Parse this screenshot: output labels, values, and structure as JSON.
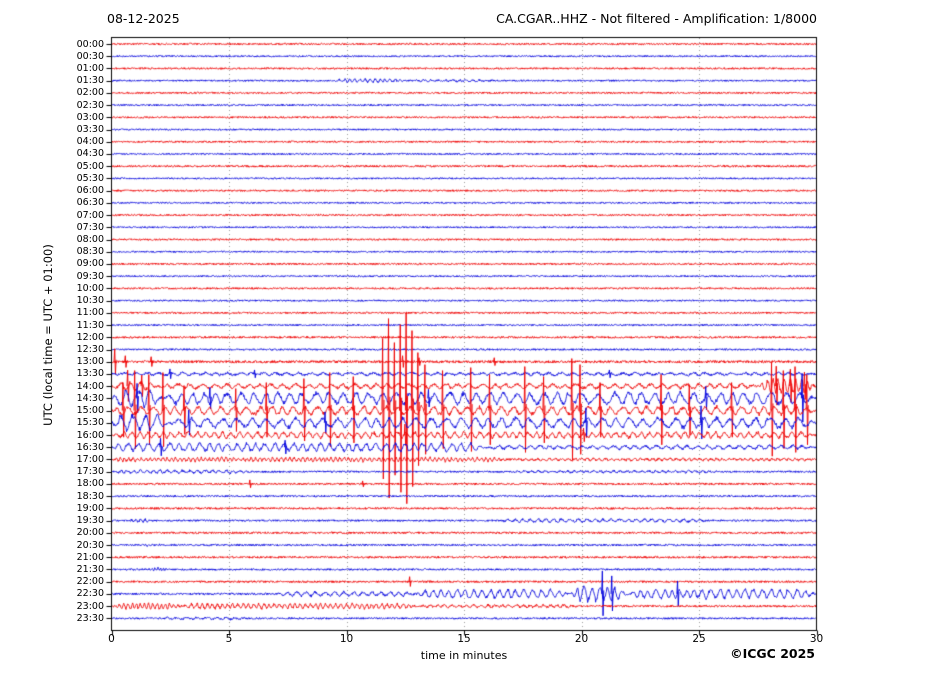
{
  "chart_data": {
    "type": "line",
    "subtype": "helicorder-dayplot-seismogram",
    "title_left": "08-12-2025",
    "title_right": "CA.CGAR..HHZ - Not filtered - Amplification: 1/8000",
    "xlabel": "time in minutes",
    "ylabel": "UTC (local time = UTC + 01:00)",
    "copyright": "©ICGC 2025",
    "x_range": [
      0,
      30
    ],
    "x_ticks": [
      0,
      5,
      10,
      15,
      20,
      25,
      30
    ],
    "grid_minutes": [
      5,
      10,
      15,
      20,
      25
    ],
    "minutes_per_line": 30,
    "grid_style": "dotted-vertical",
    "colors": {
      "red": "#ee0000",
      "blue": "#0000dd",
      "grid": "#999999",
      "frame": "#000000"
    },
    "rows": [
      {
        "label": "00:00",
        "color": "red",
        "noise": 0.9
      },
      {
        "label": "00:30",
        "color": "blue",
        "noise": 0.8
      },
      {
        "label": "01:00",
        "color": "red",
        "noise": 0.9
      },
      {
        "label": "01:30",
        "color": "blue",
        "noise": 0.8,
        "bursts": [
          [
            9.4,
            12.6,
            1.8,
            0.22
          ],
          [
            12.6,
            16.5,
            0.9,
            0.3
          ]
        ]
      },
      {
        "label": "02:00",
        "color": "red",
        "noise": 0.9
      },
      {
        "label": "02:30",
        "color": "blue",
        "noise": 0.8
      },
      {
        "label": "03:00",
        "color": "red",
        "noise": 0.9
      },
      {
        "label": "03:30",
        "color": "blue",
        "noise": 0.8
      },
      {
        "label": "04:00",
        "color": "red",
        "noise": 0.9
      },
      {
        "label": "04:30",
        "color": "blue",
        "noise": 0.8
      },
      {
        "label": "05:00",
        "color": "red",
        "noise": 1.0
      },
      {
        "label": "05:30",
        "color": "blue",
        "noise": 0.8
      },
      {
        "label": "06:00",
        "color": "red",
        "noise": 0.9
      },
      {
        "label": "06:30",
        "color": "blue",
        "noise": 0.8
      },
      {
        "label": "07:00",
        "color": "red",
        "noise": 0.9
      },
      {
        "label": "07:30",
        "color": "blue",
        "noise": 0.8
      },
      {
        "label": "08:00",
        "color": "red",
        "noise": 0.9
      },
      {
        "label": "08:30",
        "color": "blue",
        "noise": 0.8
      },
      {
        "label": "09:00",
        "color": "red",
        "noise": 0.9
      },
      {
        "label": "09:30",
        "color": "blue",
        "noise": 0.8
      },
      {
        "label": "10:00",
        "color": "red",
        "noise": 0.9
      },
      {
        "label": "10:30",
        "color": "blue",
        "noise": 0.8
      },
      {
        "label": "11:00",
        "color": "red",
        "noise": 0.9
      },
      {
        "label": "11:30",
        "color": "blue",
        "noise": 0.8
      },
      {
        "label": "12:00",
        "color": "red",
        "noise": 1.0
      },
      {
        "label": "12:30",
        "color": "blue",
        "noise": 0.9
      },
      {
        "label": "13:00",
        "color": "red",
        "noise": 1.3,
        "spikes": [
          [
            0.15,
            13
          ],
          [
            0.6,
            6
          ],
          [
            1.7,
            5
          ],
          [
            12.4,
            6
          ],
          [
            13.1,
            4
          ],
          [
            16.3,
            4
          ]
        ]
      },
      {
        "label": "13:30",
        "color": "blue",
        "noise": 1.1,
        "bursts": [
          [
            0,
            30,
            1.4,
            0.5
          ]
        ],
        "spikes": [
          [
            2.5,
            5
          ],
          [
            6.1,
            4
          ],
          [
            21.2,
            4
          ]
        ]
      },
      {
        "label": "14:00",
        "color": "red",
        "noise": 1.2,
        "bursts": [
          [
            0,
            2,
            5,
            0.45
          ],
          [
            2,
            27.5,
            2.5,
            0.5
          ],
          [
            27.5,
            30,
            8,
            0.25
          ]
        ],
        "spikes": [
          [
            0.7,
            16
          ],
          [
            1.3,
            11
          ],
          [
            28.3,
            20
          ],
          [
            28.9,
            17
          ],
          [
            29.5,
            14
          ]
        ]
      },
      {
        "label": "14:30",
        "color": "blue",
        "noise": 1.2,
        "bursts": [
          [
            0,
            2.2,
            10,
            0.5
          ],
          [
            2.2,
            30,
            6.5,
            0.55
          ]
        ],
        "spikes": [
          [
            1.1,
            15
          ],
          [
            4.2,
            11
          ],
          [
            13.5,
            9
          ],
          [
            25.3,
            12
          ],
          [
            29.4,
            25
          ]
        ]
      },
      {
        "label": "15:00",
        "color": "red",
        "noise": 1.2,
        "bursts": [
          [
            0,
            30,
            4.5,
            0.5
          ]
        ],
        "spikes": [
          [
            0.5,
            28
          ],
          [
            1.0,
            40
          ],
          [
            1.6,
            36
          ],
          [
            2.2,
            38
          ],
          [
            3.1,
            25
          ],
          [
            5.3,
            22
          ],
          [
            6.6,
            28
          ],
          [
            8.2,
            32
          ],
          [
            9.3,
            38
          ],
          [
            10.3,
            34
          ],
          [
            11.55,
            72
          ],
          [
            11.8,
            92
          ],
          [
            12.05,
            68
          ],
          [
            12.3,
            86
          ],
          [
            12.55,
            98
          ],
          [
            12.8,
            80
          ],
          [
            13.05,
            58
          ],
          [
            13.35,
            46
          ],
          [
            14.1,
            40
          ],
          [
            15.3,
            43
          ],
          [
            16.1,
            36
          ],
          [
            17.6,
            44
          ],
          [
            18.4,
            34
          ],
          [
            19.6,
            52
          ],
          [
            19.95,
            46
          ],
          [
            20.8,
            28
          ],
          [
            23.4,
            36
          ],
          [
            24.6,
            26
          ],
          [
            26.4,
            28
          ],
          [
            28.1,
            48
          ],
          [
            28.6,
            40
          ],
          [
            29.1,
            44
          ],
          [
            29.6,
            36
          ]
        ]
      },
      {
        "label": "15:30",
        "color": "blue",
        "noise": 1.2,
        "bursts": [
          [
            0,
            2.5,
            9,
            0.55
          ],
          [
            2.5,
            30,
            5.5,
            0.6
          ]
        ],
        "spikes": [
          [
            3.3,
            13
          ],
          [
            9.1,
            11
          ],
          [
            20.2,
            15
          ],
          [
            25.1,
            17
          ]
        ]
      },
      {
        "label": "16:00",
        "color": "red",
        "noise": 1.1,
        "bursts": [
          [
            0,
            30,
            3.2,
            0.35
          ]
        ],
        "spikes": [
          [
            12.5,
            11
          ],
          [
            20.1,
            7
          ]
        ]
      },
      {
        "label": "16:30",
        "color": "blue",
        "noise": 1.0,
        "bursts": [
          [
            0,
            16,
            4.5,
            0.4
          ],
          [
            16,
            30,
            2,
            0.45
          ]
        ],
        "spikes": [
          [
            2.1,
            9
          ],
          [
            7.4,
            7
          ]
        ]
      },
      {
        "label": "17:00",
        "color": "red",
        "noise": 1.0,
        "bursts": [
          [
            0,
            17,
            2.0,
            0.18
          ],
          [
            17,
            30,
            1.1,
            0.25
          ]
        ]
      },
      {
        "label": "17:30",
        "color": "blue",
        "noise": 0.9,
        "bursts": [
          [
            0,
            6,
            1.6,
            0.3
          ],
          [
            17,
            26,
            1.0,
            0.3
          ]
        ]
      },
      {
        "label": "18:00",
        "color": "red",
        "noise": 1.0,
        "spikes": [
          [
            5.9,
            4
          ],
          [
            10.7,
            3
          ]
        ]
      },
      {
        "label": "18:30",
        "color": "blue",
        "noise": 0.9
      },
      {
        "label": "19:00",
        "color": "red",
        "noise": 1.0
      },
      {
        "label": "19:30",
        "color": "blue",
        "noise": 0.9,
        "bursts": [
          [
            0.6,
            2,
            1.5,
            0.2
          ],
          [
            16.5,
            25.5,
            1.8,
            0.35
          ]
        ]
      },
      {
        "label": "20:00",
        "color": "red",
        "noise": 1.0
      },
      {
        "label": "20:30",
        "color": "blue",
        "noise": 0.9,
        "bursts": [
          [
            1.2,
            2.2,
            1.4,
            0.15
          ]
        ]
      },
      {
        "label": "21:00",
        "color": "red",
        "noise": 1.0
      },
      {
        "label": "21:30",
        "color": "blue",
        "noise": 0.9,
        "bursts": [
          [
            1.5,
            2.6,
            2.0,
            0.12
          ]
        ]
      },
      {
        "label": "22:00",
        "color": "red",
        "noise": 1.0,
        "spikes": [
          [
            12.7,
            5
          ]
        ]
      },
      {
        "label": "22:30",
        "color": "blue",
        "noise": 1.0,
        "bursts": [
          [
            7,
            13,
            2.5,
            0.4
          ],
          [
            13,
            19.5,
            4.5,
            0.35
          ],
          [
            19.5,
            22,
            8,
            0.3
          ],
          [
            22,
            30,
            5,
            0.35
          ]
        ],
        "spikes": [
          [
            20.9,
            23
          ],
          [
            21.3,
            18
          ],
          [
            24.1,
            13
          ]
        ]
      },
      {
        "label": "23:00",
        "color": "red",
        "noise": 1.0,
        "bursts": [
          [
            0,
            3,
            3.2,
            0.18
          ],
          [
            3,
            13,
            2.6,
            0.22
          ],
          [
            13,
            20,
            1.3,
            0.3
          ]
        ]
      },
      {
        "label": "23:30",
        "color": "blue",
        "noise": 0.9,
        "bursts": [
          [
            2,
            6,
            1.1,
            0.4
          ]
        ]
      }
    ]
  }
}
